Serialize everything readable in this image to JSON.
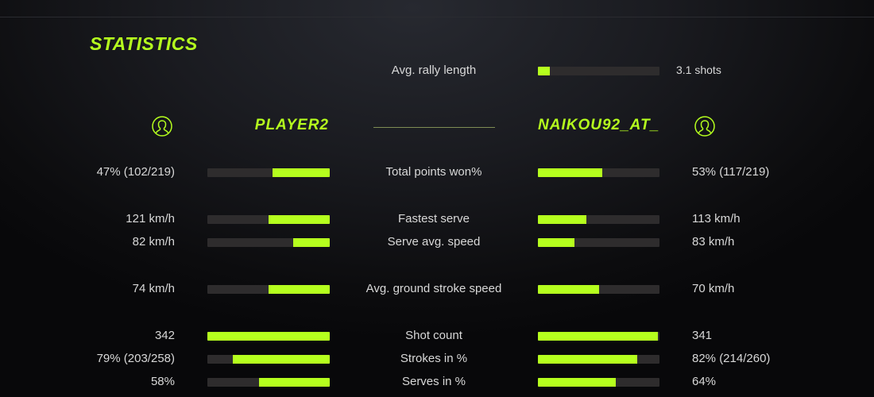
{
  "title": "STATISTICS",
  "accent_color": "#b5ff1e",
  "rally": {
    "label": "Avg. rally length",
    "value": "3.1 shots",
    "fraction": 0.1
  },
  "players": {
    "left": {
      "name": "PLAYER2",
      "icon": "user-circle-icon"
    },
    "right": {
      "name": "NAIKOU92_AT_",
      "icon": "user-circle-icon"
    }
  },
  "stats": [
    {
      "label": "Total points won%",
      "left": "47% (102/219)",
      "right": "53% (117/219)",
      "left_fraction": 0.47,
      "right_fraction": 0.53
    },
    {
      "label": "Fastest serve",
      "left": "121 km/h",
      "right": "113 km/h",
      "left_fraction": 0.5,
      "right_fraction": 0.4
    },
    {
      "label": "Serve avg. speed",
      "left": "82 km/h",
      "right": "83 km/h",
      "left_fraction": 0.3,
      "right_fraction": 0.3
    },
    {
      "label": "Avg. ground stroke speed",
      "left": "74 km/h",
      "right": "70 km/h",
      "left_fraction": 0.5,
      "right_fraction": 0.5
    },
    {
      "label": "Shot count",
      "left": "342",
      "right": "341",
      "left_fraction": 1.0,
      "right_fraction": 0.99
    },
    {
      "label": "Strokes in %",
      "left": "79% (203/258)",
      "right": "82% (214/260)",
      "left_fraction": 0.79,
      "right_fraction": 0.82
    },
    {
      "label": "Serves in %",
      "left": "58%",
      "right": "64%",
      "left_fraction": 0.58,
      "right_fraction": 0.64
    }
  ]
}
